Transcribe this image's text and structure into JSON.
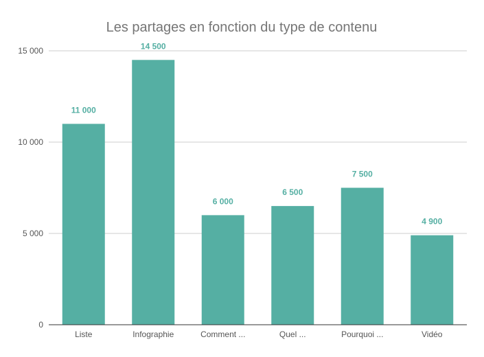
{
  "chart_data": {
    "type": "bar",
    "title": "Les partages en fonction du type de contenu",
    "xlabel": "",
    "ylabel": "",
    "categories": [
      "Liste",
      "Infographie",
      "Comment ...",
      "Quel ...",
      "Pourquoi ...",
      "Vidéo"
    ],
    "values": [
      11000,
      14500,
      6000,
      6500,
      7500,
      4900
    ],
    "data_labels": [
      "11 000",
      "14 500",
      "6 000",
      "6 500",
      "7 500",
      "4 900"
    ],
    "ylim": [
      0,
      15000
    ],
    "yticks": [
      0,
      5000,
      10000,
      15000
    ],
    "ytick_labels": [
      "0",
      "5 000",
      "10 000",
      "15 000"
    ],
    "grid": true,
    "legend": "none",
    "colors": {
      "bar": "#55afa3",
      "data_label": "#55afa3",
      "title": "#757575",
      "grid": "#cccccc",
      "axis": "#333333"
    }
  }
}
